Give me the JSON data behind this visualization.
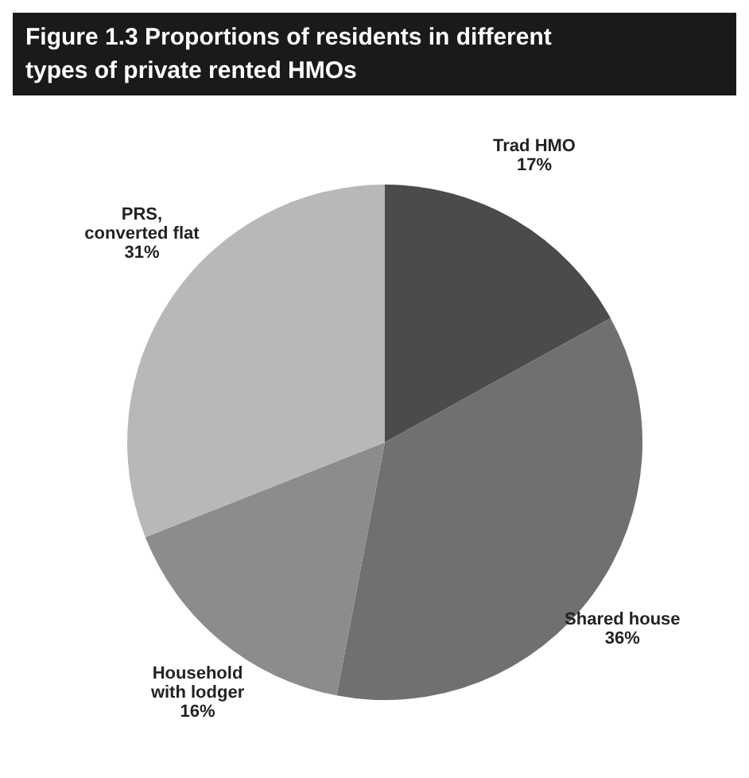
{
  "chart_data": {
    "type": "pie",
    "title": "Figure 1.3 Proportions of residents in different types of private rented HMOs",
    "categories": [
      "Trad HMO",
      "Shared house",
      "Household\nwith lodger",
      "PRS,\nconverted flat"
    ],
    "values": [
      17,
      36,
      16,
      31
    ],
    "colors": [
      "#4b4b4b",
      "#707070",
      "#8c8c8c",
      "#b8b8b8"
    ],
    "value_labels": [
      "17%",
      "36%",
      "16%",
      "31%"
    ]
  }
}
